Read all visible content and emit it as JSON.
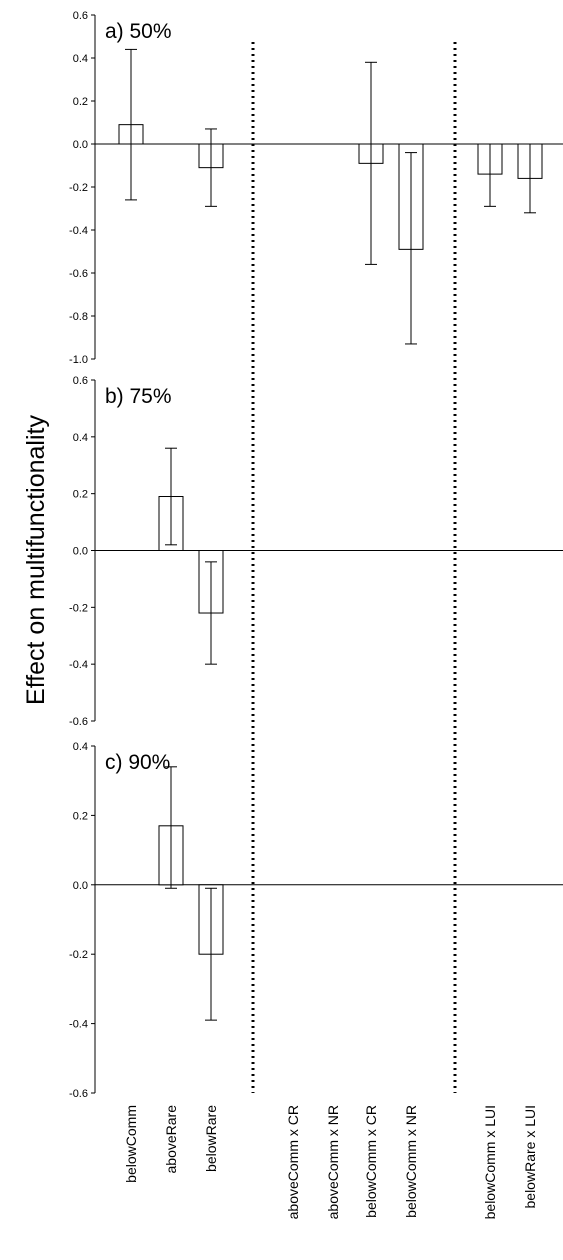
{
  "figure": {
    "ylabel": "Effect on multifunctionality"
  },
  "chart_data": [
    {
      "type": "bar",
      "title": "a) 50%",
      "ylabel": "Effect on multifunctionality",
      "ylim": [
        -1.0,
        0.6
      ],
      "yticks": [
        "0.6",
        "0.4",
        "0.2",
        "0.0",
        "-0.2",
        "-0.4",
        "-0.6",
        "-0.8",
        "-1.0"
      ],
      "ytick_values": [
        0.6,
        0.4,
        0.2,
        0.0,
        -0.2,
        -0.4,
        -0.6,
        -0.8,
        -1.0
      ],
      "categories": [
        "belowComm",
        "aboveRare",
        "belowRare",
        "aboveComm x CR",
        "aboveComm x NR",
        "belowComm x CR",
        "belowComm x NR",
        "belowComm x LUI",
        "belowRare x LUI"
      ],
      "values": [
        0.09,
        null,
        -0.11,
        null,
        null,
        -0.09,
        -0.49,
        -0.14,
        -0.16
      ],
      "error_low": [
        -0.26,
        null,
        -0.29,
        null,
        null,
        -0.56,
        -0.93,
        -0.29,
        -0.32
      ],
      "error_high": [
        0.44,
        null,
        0.07,
        null,
        null,
        0.38,
        -0.04,
        0.0,
        0.0
      ]
    },
    {
      "type": "bar",
      "title": "b) 75%",
      "ylim": [
        -0.6,
        0.6
      ],
      "yticks": [
        "0.6",
        "0.4",
        "0.2",
        "0.0",
        "-0.2",
        "-0.4",
        "-0.6"
      ],
      "ytick_values": [
        0.6,
        0.4,
        0.2,
        0.0,
        -0.2,
        -0.4,
        -0.6
      ],
      "categories": [
        "belowComm",
        "aboveRare",
        "belowRare",
        "aboveComm x CR",
        "aboveComm x NR",
        "belowComm x CR",
        "belowComm x NR",
        "belowComm x LUI",
        "belowRare x LUI"
      ],
      "values": [
        null,
        0.19,
        -0.22,
        null,
        null,
        null,
        null,
        null,
        null
      ],
      "error_low": [
        null,
        0.02,
        -0.4,
        null,
        null,
        null,
        null,
        null,
        null
      ],
      "error_high": [
        null,
        0.36,
        -0.04,
        null,
        null,
        null,
        null,
        null,
        null
      ]
    },
    {
      "type": "bar",
      "title": "c) 90%",
      "ylim": [
        -0.6,
        0.4
      ],
      "yticks": [
        "0.4",
        "0.2",
        "0.0",
        "-0.2",
        "-0.4",
        "-0.6"
      ],
      "ytick_values": [
        0.4,
        0.2,
        0.0,
        -0.2,
        -0.4,
        -0.6
      ],
      "categories": [
        "belowComm",
        "aboveRare",
        "belowRare",
        "aboveComm x CR",
        "aboveComm x NR",
        "belowComm x CR",
        "belowComm x NR",
        "belowComm x LUI",
        "belowRare x LUI"
      ],
      "values": [
        null,
        0.17,
        -0.2,
        null,
        null,
        null,
        null,
        null,
        null
      ],
      "error_low": [
        null,
        -0.01,
        -0.39,
        null,
        null,
        null,
        null,
        null,
        null
      ],
      "error_high": [
        null,
        0.34,
        -0.01,
        null,
        null,
        null,
        null,
        null,
        null
      ]
    }
  ],
  "x_categories": [
    "belowComm",
    "aboveRare",
    "belowRare",
    "aboveComm x CR",
    "aboveComm x NR",
    "belowComm x CR",
    "belowComm x NR",
    "belowComm x LUI",
    "belowRare x LUI"
  ],
  "separators_after_category_index": [
    2,
    6
  ],
  "colors": {
    "bar_fill": "#ffffff",
    "stroke": "#000000",
    "separator": "#000000"
  }
}
